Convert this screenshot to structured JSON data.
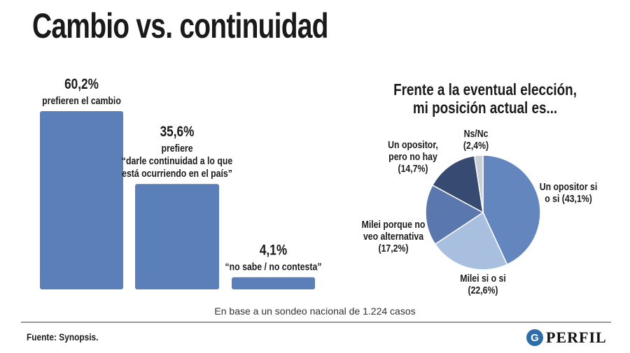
{
  "title": "Cambio vs. continuidad",
  "chart_data": [
    {
      "type": "bar",
      "categories": [
        "prefieren el cambio",
        "prefiere “darle continuidad a lo que está ocurriendo en el país”",
        "“no sabe / no contesta”"
      ],
      "values": [
        60.2,
        35.6,
        4.1
      ],
      "value_labels": [
        "60,2%",
        "35,6%",
        "4,1%"
      ],
      "label_lines": [
        [
          "prefieren el cambio"
        ],
        [
          "prefiere",
          "“darle continuidad a lo que",
          "está ocurriendo en el país”"
        ],
        [
          "“no sabe / no contesta”"
        ]
      ],
      "ylim": [
        0,
        60.2
      ],
      "grid": false,
      "color": "#5b7fb8"
    },
    {
      "type": "pie",
      "title_lines": [
        "Frente a la eventual elección,",
        "mi posición actual es..."
      ],
      "slices": [
        {
          "label_lines": [
            "Un opositor si",
            "o si (43,1%)"
          ],
          "value": 43.1,
          "color": "#6286bd"
        },
        {
          "label_lines": [
            "Milei si o si",
            "(22,6%)"
          ],
          "value": 22.6,
          "color": "#a9bfe0"
        },
        {
          "label_lines": [
            "Milei porque no",
            "veo alternativa",
            "(17,2%)"
          ],
          "value": 17.2,
          "color": "#5a78ad"
        },
        {
          "label_lines": [
            "Un opositor,",
            "pero no hay",
            "(14,7%)"
          ],
          "value": 14.7,
          "color": "#364a72"
        },
        {
          "label_lines": [
            "Ns/Nc",
            "(2,4%)"
          ],
          "value": 2.4,
          "color": "#c9cfd9"
        }
      ]
    }
  ],
  "footnote": "En base a un sondeo nacional de 1.224 casos",
  "source": "Fuente: Synopsis.",
  "logo": {
    "text": "PERFIL",
    "mark": "G"
  }
}
